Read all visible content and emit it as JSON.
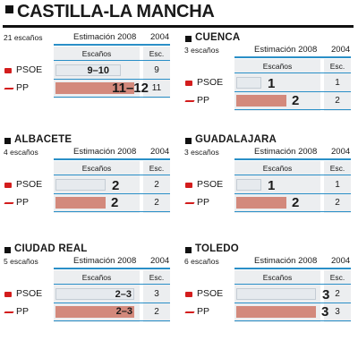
{
  "title": "CASTILLA-LA MANCHA",
  "colors": {
    "psoe": "#d31d1d",
    "pp_bar": "#d3897c",
    "psoe_bar": "#e6eaee",
    "rule": "#2a8fc7"
  },
  "chart_data": [
    {
      "type": "bar",
      "title": "",
      "seats_label": "21 escaños",
      "est_label": "Estimación 2008",
      "year_label": "2004",
      "sub_label": "Escaños",
      "esc_label": "Esc.",
      "categories": [
        "PSOE",
        "PP"
      ],
      "estimate_labels": [
        "9–10",
        "11–12"
      ],
      "values": [
        9.5,
        11.5
      ],
      "scale_max": 12,
      "values_2004": [
        "9",
        "11"
      ]
    },
    {
      "type": "bar",
      "title": "CUENCA",
      "seats_label": "3 escaños",
      "est_label": "Estimación 2008",
      "year_label": "2004",
      "sub_label": "Escaños",
      "esc_label": "Esc.",
      "categories": [
        "PSOE",
        "PP"
      ],
      "estimate_labels": [
        "1",
        "2"
      ],
      "values": [
        1,
        2
      ],
      "scale_max": 3.3,
      "values_2004": [
        "1",
        "2"
      ]
    },
    {
      "type": "bar",
      "title": "ALBACETE",
      "seats_label": "4 escaños",
      "est_label": "Estimación 2008",
      "year_label": "2004",
      "sub_label": "Escaños",
      "esc_label": "Esc.",
      "categories": [
        "PSOE",
        "PP"
      ],
      "estimate_labels": [
        "2",
        "2"
      ],
      "values": [
        2,
        2
      ],
      "scale_max": 3.3,
      "values_2004": [
        "2",
        "2"
      ]
    },
    {
      "type": "bar",
      "title": "GUADALAJARA",
      "seats_label": "3 escaños",
      "est_label": "Estimación 2008",
      "year_label": "2004",
      "sub_label": "Escaños",
      "esc_label": "Esc.",
      "categories": [
        "PSOE",
        "PP"
      ],
      "estimate_labels": [
        "1",
        "2"
      ],
      "values": [
        1,
        2
      ],
      "scale_max": 3.3,
      "values_2004": [
        "1",
        "2"
      ]
    },
    {
      "type": "bar",
      "title": "CIUDAD REAL",
      "seats_label": "5 escaños",
      "est_label": "Estimación 2008",
      "year_label": "2004",
      "sub_label": "Escaños",
      "esc_label": "Esc.",
      "categories": [
        "PSOE",
        "PP"
      ],
      "estimate_labels": [
        "2–3",
        "2–3"
      ],
      "values": [
        2.5,
        2.5
      ],
      "scale_max": 2.6,
      "values_2004": [
        "3",
        "2"
      ]
    },
    {
      "type": "bar",
      "title": "TOLEDO",
      "seats_label": "6 escaños",
      "est_label": "Estimación 2008",
      "year_label": "2004",
      "sub_label": "Escaños",
      "esc_label": "Esc.",
      "categories": [
        "PSOE",
        "PP"
      ],
      "estimate_labels": [
        "3",
        "3"
      ],
      "values": [
        3,
        3
      ],
      "scale_max": 3.1,
      "values_2004": [
        "2",
        "3"
      ]
    }
  ]
}
